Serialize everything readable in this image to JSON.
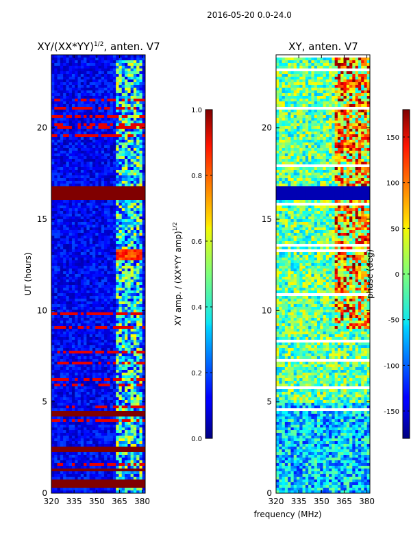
{
  "figure": {
    "suptitle": "2016-05-20 0.0-24.0",
    "xlabel": "frequency (MHz)"
  },
  "chart_data": [
    {
      "type": "heatmap",
      "title": "XY/(XX*YY)",
      "title_sup": "1/2",
      "title_suffix": ", anten. V7",
      "xlabel": "",
      "ylabel": "UT (hours)",
      "xlim": [
        320,
        382
      ],
      "ylim": [
        0,
        24
      ],
      "xticks": [
        320,
        335,
        350,
        365,
        380
      ],
      "yticks": [
        0,
        5,
        10,
        15,
        20
      ],
      "colorbar": {
        "label_main": "XY amp. / (XX*YY amp)",
        "label_sup": "1/2",
        "range": [
          0.0,
          1.0
        ],
        "ticks": [
          "0.0",
          "0.2",
          "0.4",
          "0.6",
          "0.8",
          "1.0"
        ],
        "colormap": "jet"
      },
      "saturated_hour_bands": [
        [
          16.0,
          16.75
        ],
        [
          4.2,
          4.5
        ],
        [
          2.2,
          2.5
        ],
        [
          1.2,
          1.4
        ],
        [
          0.3,
          0.7
        ]
      ],
      "bright_freq_range_mhz": [
        362,
        381
      ],
      "bright_hour_band": [
        12.8,
        13.3
      ]
    },
    {
      "type": "heatmap",
      "title": "XY, anten. V7",
      "xlabel": "",
      "ylabel": "",
      "xlim": [
        320,
        382
      ],
      "ylim": [
        0,
        24
      ],
      "xticks": [
        320,
        335,
        350,
        365,
        380
      ],
      "yticks": [
        0,
        5,
        10,
        15,
        20
      ],
      "colorbar": {
        "label_main": "phase (deg)",
        "range": [
          -180,
          180
        ],
        "ticks": [
          "-150",
          "-100",
          "-50",
          "0",
          "50",
          "100",
          "150"
        ],
        "colormap": "jet"
      },
      "blank_hour_band": [
        16.0,
        16.8
      ],
      "warm_freq_range_mhz": [
        359,
        382
      ]
    }
  ]
}
